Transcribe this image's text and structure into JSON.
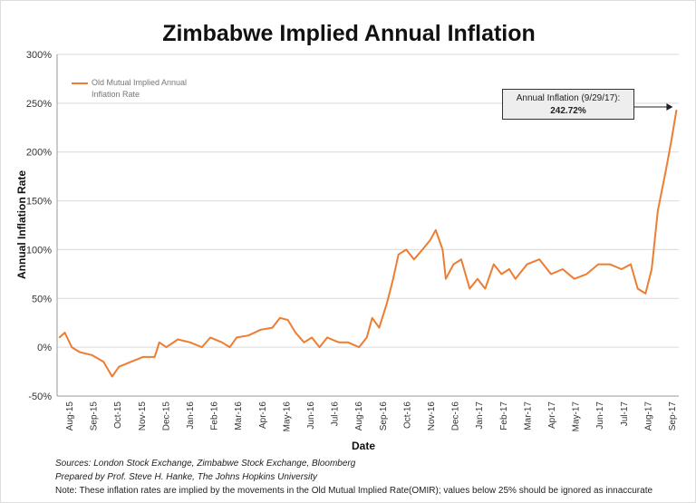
{
  "chart_data": {
    "type": "line",
    "title": "Zimbabwe Implied Annual Inflation",
    "xlabel": "Date",
    "ylabel": "Annual Inflation Rate",
    "ylim": [
      -50,
      300
    ],
    "yticks": [
      "-50%",
      "0%",
      "50%",
      "100%",
      "150%",
      "200%",
      "250%",
      "300%"
    ],
    "ytick_values": [
      -50,
      0,
      50,
      100,
      150,
      200,
      250,
      300
    ],
    "xticks": [
      "Aug-15",
      "Sep-15",
      "Oct-15",
      "Nov-15",
      "Dec-15",
      "Jan-16",
      "Feb-16",
      "Mar-16",
      "Apr-16",
      "May-16",
      "Jun-16",
      "Jul-16",
      "Aug-16",
      "Sep-16",
      "Oct-16",
      "Nov-16",
      "Dec-16",
      "Jan-17",
      "Feb-17",
      "Mar-17",
      "Apr-17",
      "May-17",
      "Jun-17",
      "Jul-17",
      "Aug-17",
      "Sep-17"
    ],
    "grid": "horizontal",
    "legend_position": "top-left",
    "series": [
      {
        "name": "Old Mutual Implied Annual Inflation Rate",
        "color": "#ed7d31",
        "points": [
          [
            "2015-07-25",
            10
          ],
          [
            "2015-08-01",
            15
          ],
          [
            "2015-08-10",
            0
          ],
          [
            "2015-08-20",
            -5
          ],
          [
            "2015-09-05",
            -8
          ],
          [
            "2015-09-20",
            -15
          ],
          [
            "2015-10-01",
            -30
          ],
          [
            "2015-10-10",
            -20
          ],
          [
            "2015-10-25",
            -15
          ],
          [
            "2015-11-10",
            -10
          ],
          [
            "2015-11-25",
            -10
          ],
          [
            "2015-12-01",
            5
          ],
          [
            "2015-12-10",
            0
          ],
          [
            "2015-12-25",
            8
          ],
          [
            "2016-01-10",
            5
          ],
          [
            "2016-01-25",
            0
          ],
          [
            "2016-02-05",
            10
          ],
          [
            "2016-02-20",
            5
          ],
          [
            "2016-03-01",
            0
          ],
          [
            "2016-03-10",
            10
          ],
          [
            "2016-03-25",
            12
          ],
          [
            "2016-04-10",
            18
          ],
          [
            "2016-04-25",
            20
          ],
          [
            "2016-05-05",
            30
          ],
          [
            "2016-05-15",
            28
          ],
          [
            "2016-05-25",
            15
          ],
          [
            "2016-06-05",
            5
          ],
          [
            "2016-06-15",
            10
          ],
          [
            "2016-06-25",
            0
          ],
          [
            "2016-07-05",
            10
          ],
          [
            "2016-07-20",
            5
          ],
          [
            "2016-08-01",
            5
          ],
          [
            "2016-08-15",
            0
          ],
          [
            "2016-08-25",
            10
          ],
          [
            "2016-09-01",
            30
          ],
          [
            "2016-09-10",
            20
          ],
          [
            "2016-09-20",
            45
          ],
          [
            "2016-09-28",
            70
          ],
          [
            "2016-10-05",
            95
          ],
          [
            "2016-10-15",
            100
          ],
          [
            "2016-10-25",
            90
          ],
          [
            "2016-11-05",
            100
          ],
          [
            "2016-11-15",
            110
          ],
          [
            "2016-11-22",
            120
          ],
          [
            "2016-12-01",
            100
          ],
          [
            "2016-12-05",
            70
          ],
          [
            "2016-12-15",
            85
          ],
          [
            "2016-12-25",
            90
          ],
          [
            "2017-01-05",
            60
          ],
          [
            "2017-01-15",
            70
          ],
          [
            "2017-01-25",
            60
          ],
          [
            "2017-02-05",
            85
          ],
          [
            "2017-02-15",
            75
          ],
          [
            "2017-02-25",
            80
          ],
          [
            "2017-03-05",
            70
          ],
          [
            "2017-03-20",
            85
          ],
          [
            "2017-04-05",
            90
          ],
          [
            "2017-04-20",
            75
          ],
          [
            "2017-05-05",
            80
          ],
          [
            "2017-05-20",
            70
          ],
          [
            "2017-06-05",
            75
          ],
          [
            "2017-06-20",
            85
          ],
          [
            "2017-07-05",
            85
          ],
          [
            "2017-07-20",
            80
          ],
          [
            "2017-08-01",
            85
          ],
          [
            "2017-08-10",
            60
          ],
          [
            "2017-08-20",
            55
          ],
          [
            "2017-08-28",
            80
          ],
          [
            "2017-09-05",
            140
          ],
          [
            "2017-09-15",
            180
          ],
          [
            "2017-09-22",
            210
          ],
          [
            "2017-09-29",
            242.72
          ]
        ]
      }
    ],
    "annotation": {
      "label": "Annual Inflation (9/29/17):",
      "value": "242.72%"
    }
  },
  "notes": {
    "sources": "Sources: London Stock Exchange, Zimbabwe Stock Exchange, Bloomberg",
    "prepared": "Prepared by Prof. Steve H. Hanke, The Johns Hopkins University",
    "note": "Note: These inflation rates are implied by the movements in the Old Mutual Implied Rate(OMIR); values below 25% should be ignored as innaccurate"
  }
}
